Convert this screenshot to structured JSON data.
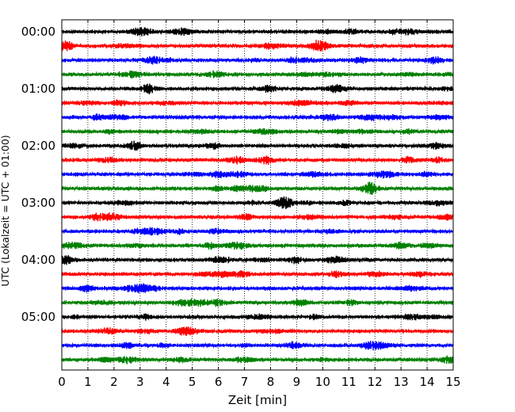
{
  "chart_data": {
    "type": "line",
    "title": "",
    "xlabel": "Zeit  [min]",
    "ylabel": "UTC (Lokalzeit = UTC + 01:00)",
    "xlim": [
      0,
      15
    ],
    "x_ticks": [
      0,
      1,
      2,
      3,
      4,
      5,
      6,
      7,
      8,
      9,
      10,
      11,
      12,
      13,
      14,
      15
    ],
    "x_tick_labels": [
      "0",
      "1",
      "2",
      "3",
      "4",
      "5",
      "6",
      "7",
      "8",
      "9",
      "10",
      "11",
      "12",
      "13",
      "14",
      "15"
    ],
    "y_tick_labels": [
      "00:00",
      "01:00",
      "02:00",
      "03:00",
      "04:00",
      "05:00"
    ],
    "rows_per_hour": 4,
    "row_start_minutes_utc": [
      0,
      15,
      30,
      45,
      60,
      75,
      90,
      105,
      120,
      135,
      150,
      165,
      180,
      195,
      210,
      225,
      240,
      255,
      270,
      285,
      300,
      315,
      330,
      345
    ],
    "row_colors_cycle": [
      "#000000",
      "#ff0000",
      "#0000ff",
      "#008000"
    ],
    "grid": "vertical dotted lines at each minute",
    "legend": "none",
    "trace_description": "continuous low-amplitude seismic noise, each row spans 15 minutes"
  }
}
